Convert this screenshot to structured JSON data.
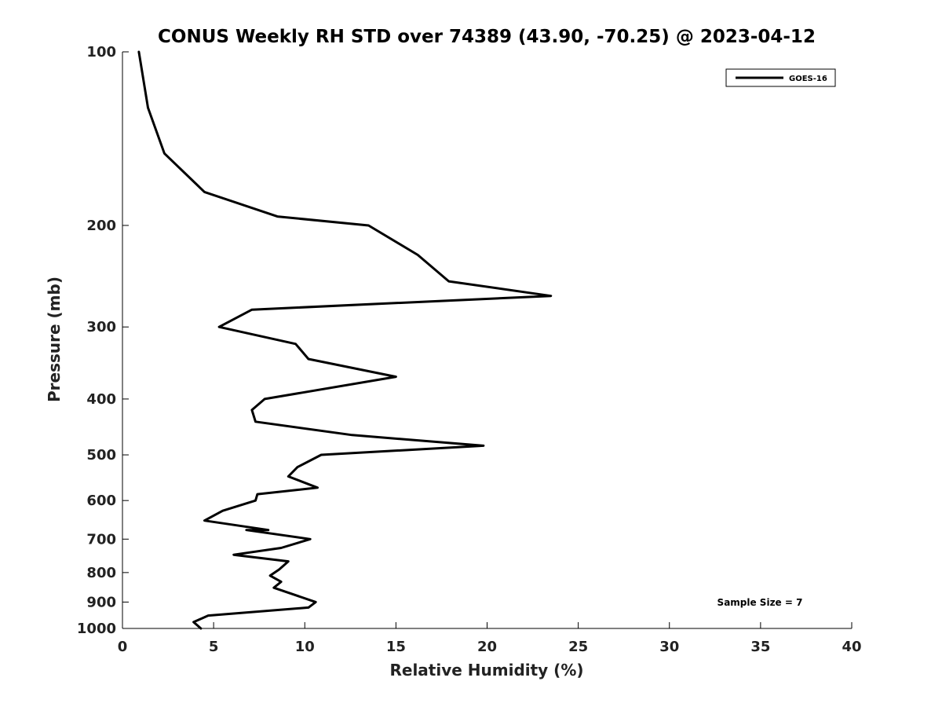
{
  "chart_data": {
    "type": "line",
    "title": "CONUS Weekly RH STD over 74389 (43.90, -70.25) @ 2023-04-12",
    "xlabel": "Relative Humidity (%)",
    "ylabel": "Pressure (mb)",
    "xlim": [
      0,
      40
    ],
    "ylim": [
      100,
      1000
    ],
    "y_scale": "log",
    "y_inverted": true,
    "x_ticks": [
      0,
      5,
      10,
      15,
      20,
      25,
      30,
      35,
      40
    ],
    "y_ticks": [
      100,
      200,
      300,
      400,
      500,
      600,
      700,
      800,
      900,
      1000
    ],
    "grid": false,
    "legend_position": "top-right",
    "annotation": "Sample Size = 7",
    "series": [
      {
        "name": "GOES-16",
        "color": "#000000",
        "points": [
          [
            0.9,
            100
          ],
          [
            1.4,
            125
          ],
          [
            2.3,
            150
          ],
          [
            4.5,
            175
          ],
          [
            8.5,
            193
          ],
          [
            13.5,
            200
          ],
          [
            16.2,
            225
          ],
          [
            17.9,
            250
          ],
          [
            23.5,
            265
          ],
          [
            7.1,
            280
          ],
          [
            5.3,
            300
          ],
          [
            9.5,
            321
          ],
          [
            10.2,
            341
          ],
          [
            15.0,
            366
          ],
          [
            7.8,
            400
          ],
          [
            7.1,
            418
          ],
          [
            7.3,
            438
          ],
          [
            12.6,
            462
          ],
          [
            19.8,
            482
          ],
          [
            10.9,
            500
          ],
          [
            9.6,
            525
          ],
          [
            9.1,
            545
          ],
          [
            10.7,
            570
          ],
          [
            7.4,
            585
          ],
          [
            7.3,
            600
          ],
          [
            5.5,
            625
          ],
          [
            4.5,
            650
          ],
          [
            8.0,
            675
          ],
          [
            6.8,
            675
          ],
          [
            10.3,
            700
          ],
          [
            8.7,
            725
          ],
          [
            6.1,
            745
          ],
          [
            9.1,
            765
          ],
          [
            8.6,
            790
          ],
          [
            8.1,
            810
          ],
          [
            8.7,
            830
          ],
          [
            8.3,
            850
          ],
          [
            10.6,
            900
          ],
          [
            10.2,
            920
          ],
          [
            4.7,
            950
          ],
          [
            3.9,
            975
          ],
          [
            4.3,
            1000
          ]
        ]
      }
    ]
  }
}
